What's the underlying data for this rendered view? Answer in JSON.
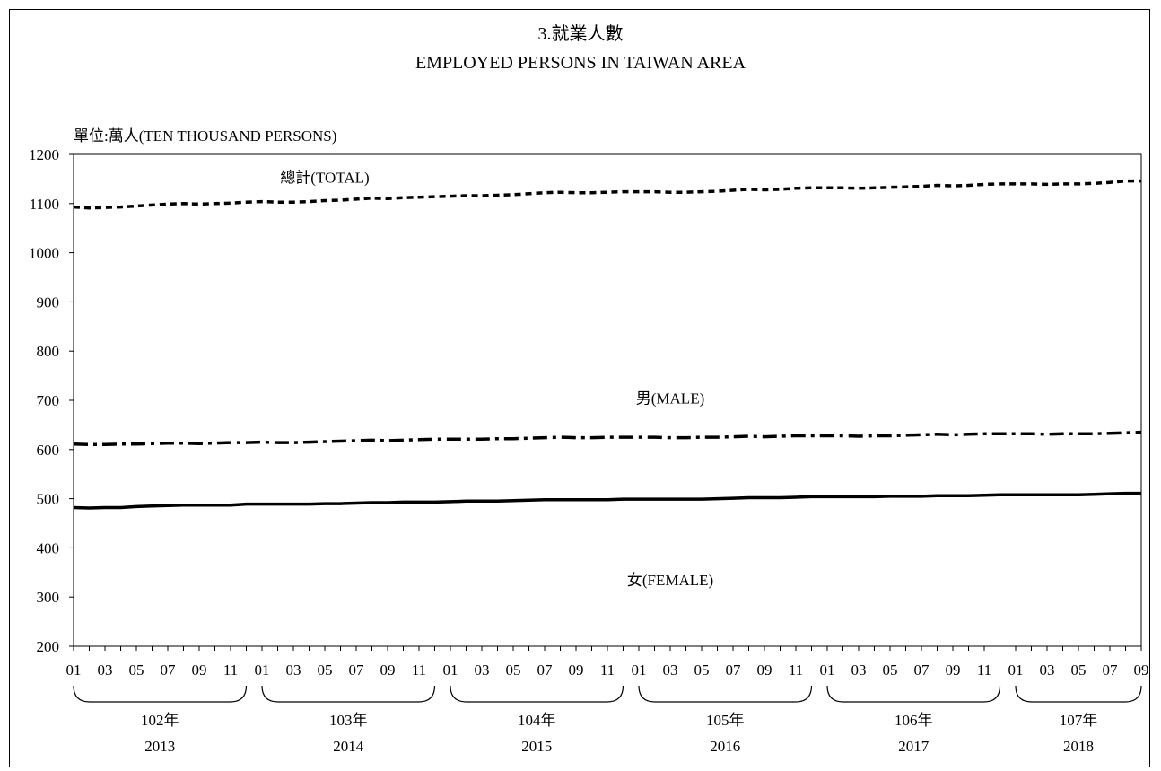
{
  "chart_data": {
    "type": "line",
    "title": "3.就業人數",
    "subtitle": "EMPLOYED PERSONS IN TAIWAN AREA",
    "ylabel": "單位:萬人(TEN THOUSAND PERSONS)",
    "ylim": [
      200,
      1200
    ],
    "yticks": [
      200,
      300,
      400,
      500,
      600,
      700,
      800,
      900,
      1000,
      1100,
      1200
    ],
    "grid": false,
    "legend": "none",
    "x_start": "2013-01",
    "x_end": "2018-09",
    "month_tick_labels": [
      "01",
      "03",
      "05",
      "07",
      "09",
      "11"
    ],
    "year_groups": [
      {
        "roc": "102年",
        "ad": "2013"
      },
      {
        "roc": "103年",
        "ad": "2014"
      },
      {
        "roc": "104年",
        "ad": "2015"
      },
      {
        "roc": "105年",
        "ad": "2016"
      },
      {
        "roc": "106年",
        "ad": "2017"
      },
      {
        "roc": "107年",
        "ad": "2018"
      }
    ],
    "series": [
      {
        "name": "總計(TOTAL)",
        "style": "dashed",
        "values": [
          1093,
          1091,
          1092,
          1093,
          1095,
          1097,
          1099,
          1100,
          1099,
          1100,
          1101,
          1103,
          1104,
          1103,
          1103,
          1104,
          1106,
          1107,
          1109,
          1111,
          1110,
          1112,
          1113,
          1114,
          1115,
          1116,
          1116,
          1117,
          1118,
          1120,
          1122,
          1123,
          1122,
          1122,
          1123,
          1124,
          1124,
          1124,
          1123,
          1123,
          1124,
          1125,
          1127,
          1129,
          1128,
          1129,
          1131,
          1132,
          1132,
          1132,
          1131,
          1132,
          1133,
          1134,
          1135,
          1137,
          1136,
          1137,
          1139,
          1140,
          1140,
          1140,
          1139,
          1140,
          1140,
          1141,
          1143,
          1146,
          1146
        ]
      },
      {
        "name": "男(MALE)",
        "style": "dashdot",
        "values": [
          611,
          610,
          610,
          611,
          611,
          612,
          613,
          613,
          612,
          613,
          614,
          614,
          615,
          614,
          614,
          615,
          616,
          617,
          618,
          619,
          618,
          619,
          620,
          621,
          621,
          621,
          621,
          622,
          622,
          623,
          624,
          625,
          624,
          624,
          625,
          625,
          625,
          625,
          624,
          624,
          625,
          625,
          626,
          627,
          626,
          627,
          628,
          628,
          628,
          628,
          627,
          628,
          628,
          629,
          630,
          631,
          630,
          631,
          632,
          632,
          632,
          632,
          631,
          632,
          632,
          632,
          633,
          634,
          635
        ]
      },
      {
        "name": "女(FEMALE)",
        "style": "solid",
        "values": [
          482,
          481,
          482,
          482,
          484,
          485,
          486,
          487,
          487,
          487,
          487,
          489,
          489,
          489,
          489,
          489,
          490,
          490,
          491,
          492,
          492,
          493,
          493,
          493,
          494,
          495,
          495,
          495,
          496,
          497,
          498,
          498,
          498,
          498,
          498,
          499,
          499,
          499,
          499,
          499,
          499,
          500,
          501,
          502,
          502,
          502,
          503,
          504,
          504,
          504,
          504,
          504,
          505,
          505,
          505,
          506,
          506,
          506,
          507,
          508,
          508,
          508,
          508,
          508,
          508,
          509,
          510,
          511,
          511
        ]
      }
    ]
  }
}
